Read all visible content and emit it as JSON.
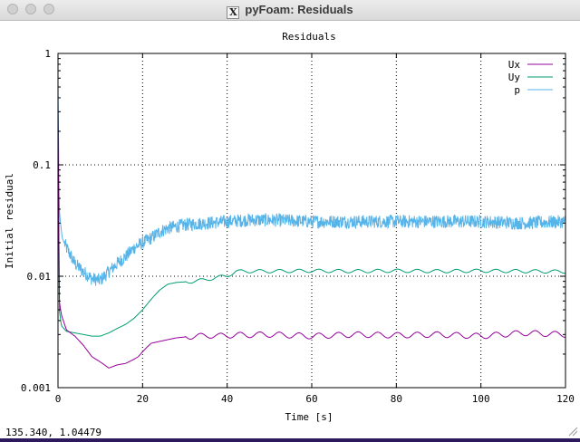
{
  "window": {
    "title": "pyFoam: Residuals",
    "x_glyph": "X"
  },
  "status_text": "135.340,  1.04479",
  "colors": {
    "Ux": "#94009b",
    "Uy": "#009e73",
    "p": "#56b4e9"
  },
  "chart_data": {
    "type": "line",
    "title": "Residuals",
    "xlabel": "Time [s]",
    "ylabel": "Initial residual",
    "xlim": [
      0,
      120
    ],
    "ylim": [
      0.001,
      1
    ],
    "yscale": "log",
    "grid": true,
    "legend_position": "top-right",
    "x_ticks": [
      0,
      20,
      40,
      60,
      80,
      100,
      120
    ],
    "y_ticks": [
      {
        "value": 0.001,
        "label": "0.001"
      },
      {
        "value": 0.01,
        "label": "0.01"
      },
      {
        "value": 0.1,
        "label": "0.1"
      },
      {
        "value": 1,
        "label": "1"
      }
    ],
    "series": [
      {
        "name": "Ux",
        "x": [
          0,
          0.3,
          0.8,
          2,
          4,
          6,
          8,
          10,
          11,
          12,
          14,
          16,
          18,
          19,
          20,
          21,
          22,
          24,
          26,
          28,
          30,
          32,
          34,
          36,
          38,
          40,
          50,
          60,
          70,
          80,
          90,
          100,
          110,
          120
        ],
        "y": [
          0.35,
          0.006,
          0.0045,
          0.0033,
          0.0029,
          0.0024,
          0.0019,
          0.0017,
          0.0016,
          0.0015,
          0.0016,
          0.00165,
          0.0018,
          0.0019,
          0.0021,
          0.0023,
          0.0025,
          0.0026,
          0.0027,
          0.0028,
          0.00285,
          0.0029,
          0.0029,
          0.00295,
          0.0029,
          0.00295,
          0.003,
          0.0029,
          0.003,
          0.00295,
          0.003,
          0.0029,
          0.0031,
          0.003
        ],
        "wiggle": 0.025
      },
      {
        "name": "Uy",
        "x": [
          0,
          0.3,
          0.8,
          2,
          4,
          6,
          8,
          10,
          12,
          14,
          16,
          18,
          20,
          22,
          24,
          26,
          28,
          30,
          32,
          34,
          36,
          38,
          40,
          42,
          44,
          50,
          60,
          70,
          80,
          90,
          100,
          110,
          120
        ],
        "y": [
          0.3,
          0.005,
          0.0036,
          0.0032,
          0.0031,
          0.003,
          0.0029,
          0.0029,
          0.0031,
          0.0034,
          0.0037,
          0.0042,
          0.005,
          0.0062,
          0.0075,
          0.0085,
          0.0088,
          0.0089,
          0.009,
          0.0092,
          0.0095,
          0.0098,
          0.0101,
          0.011,
          0.0111,
          0.0111,
          0.0112,
          0.0111,
          0.0112,
          0.0111,
          0.0112,
          0.0111,
          0.011
        ],
        "wiggle": 0.015
      },
      {
        "name": "p",
        "x": [
          0,
          0.3,
          0.6,
          1,
          2,
          4,
          6,
          8,
          10,
          12,
          14,
          16,
          18,
          20,
          22,
          24,
          26,
          28,
          30,
          35,
          40,
          45,
          50,
          60,
          70,
          80,
          90,
          100,
          110,
          120
        ],
        "y": [
          0.5,
          0.04,
          0.03,
          0.022,
          0.018,
          0.013,
          0.011,
          0.0095,
          0.0092,
          0.011,
          0.013,
          0.015,
          0.018,
          0.02,
          0.022,
          0.025,
          0.027,
          0.028,
          0.029,
          0.03,
          0.031,
          0.032,
          0.032,
          0.031,
          0.031,
          0.031,
          0.031,
          0.031,
          0.03,
          0.031
        ],
        "noise": 0.12
      }
    ]
  }
}
